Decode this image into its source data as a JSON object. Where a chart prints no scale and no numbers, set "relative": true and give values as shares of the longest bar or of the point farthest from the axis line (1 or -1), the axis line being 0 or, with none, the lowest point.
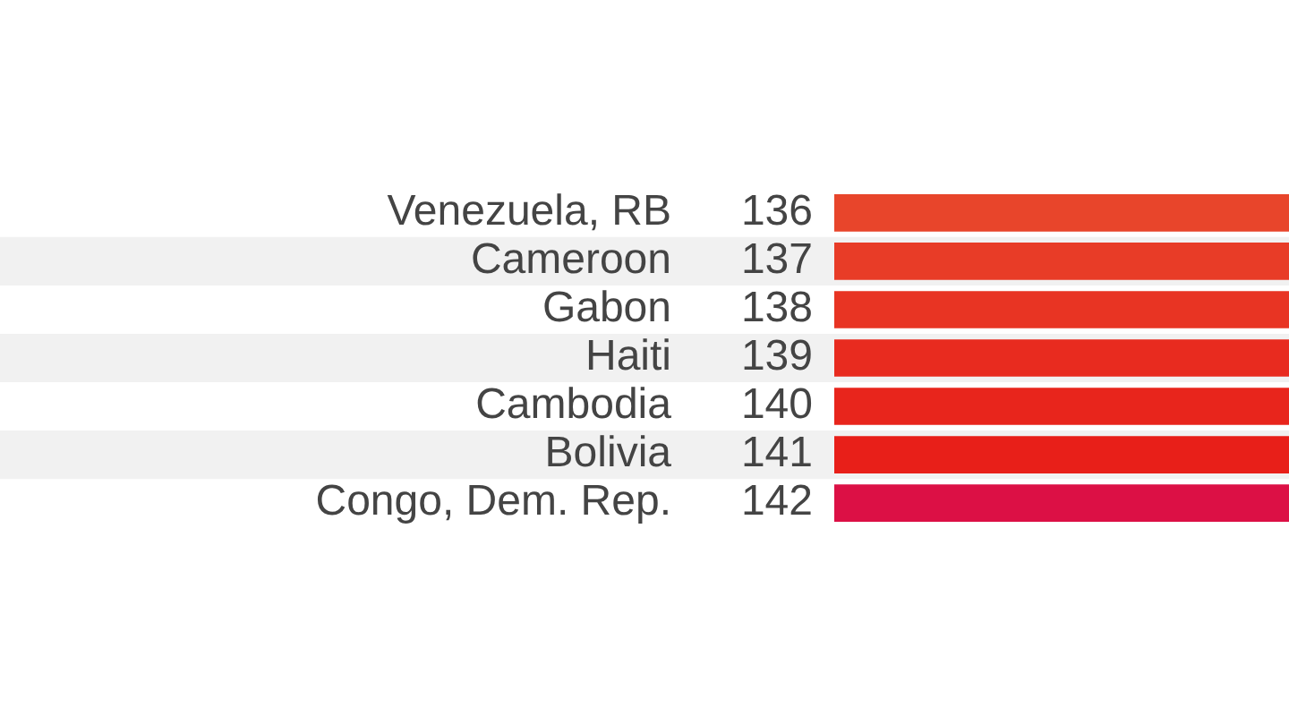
{
  "chart_data": {
    "type": "bar",
    "orientation": "horizontal",
    "relative": true,
    "categories": [
      "Venezuela, RB",
      "Cameroon",
      "Gabon",
      "Haiti",
      "Cambodia",
      "Bolivia",
      "Congo, Dem. Rep."
    ],
    "values": [
      1,
      1,
      1,
      1,
      1,
      1,
      1
    ],
    "colors": [
      "#e8452b",
      "#e83c27",
      "#e83423",
      "#e82b1f",
      "#e8251c",
      "#e81f19",
      "#dc1045"
    ],
    "annotations": [
      "136",
      "137",
      "138",
      "139",
      "140",
      "141",
      "142"
    ],
    "bands": [
      {
        "axis": "y",
        "from": "Cameroon",
        "to": "Cameroon",
        "color": "#f1f1f1"
      },
      {
        "axis": "y",
        "from": "Haiti",
        "to": "Haiti",
        "color": "#f1f1f1"
      },
      {
        "axis": "y",
        "from": "Bolivia",
        "to": "Bolivia",
        "color": "#f1f1f1"
      }
    ],
    "legend": false
  }
}
